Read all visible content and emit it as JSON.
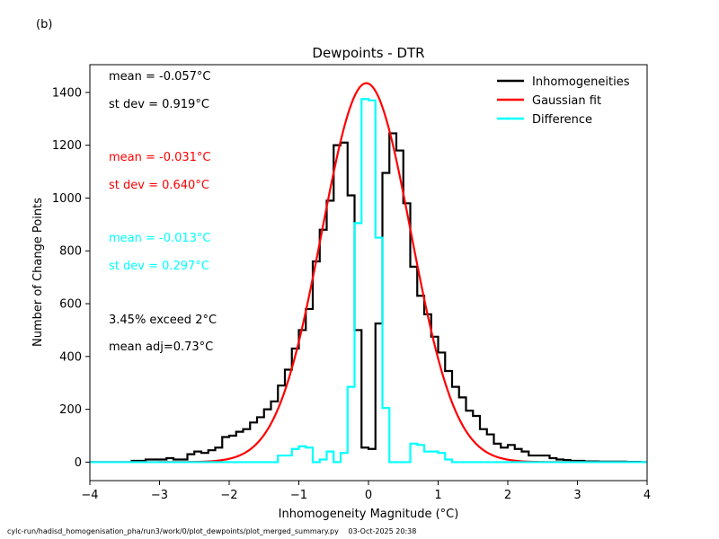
{
  "panel_label": "(b)",
  "footer": {
    "path": "cylc-run/hadisd_homogenisation_pha/run3/work/0/plot_dewpoints/plot_merged_summary.py",
    "timestamp": "03-Oct-2025 20:38"
  },
  "colors": {
    "inhomogeneities": "#000000",
    "gaussian": "#ff0000",
    "difference": "#00ffff",
    "axes": "#000000",
    "background": "#ffffff"
  },
  "chart_data": {
    "type": "line",
    "title": "Dewpoints - DTR",
    "xlabel": "Inhomogeneity Magnitude (°C)",
    "ylabel": "Number of Change Points",
    "xlim": [
      -4,
      4
    ],
    "ylim": [
      -70,
      1505
    ],
    "xticks": [
      -4,
      -3,
      -2,
      -1,
      0,
      1,
      2,
      3,
      4
    ],
    "yticks": [
      0,
      200,
      400,
      600,
      800,
      1000,
      1200,
      1400
    ],
    "grid": false,
    "legend_position": "top-right",
    "stats_text": [
      {
        "text": "mean = -0.057$^\\circ$C",
        "color": "#000000"
      },
      {
        "text": "st dev =  0.919$^\\circ$C",
        "color": "#000000"
      },
      {
        "text": "mean = -0.031$^\\circ$C",
        "color": "#ff0000"
      },
      {
        "text": "st dev =  0.640$^\\circ$C",
        "color": "#ff0000"
      },
      {
        "text": "mean = -0.013$^\\circ$C",
        "color": "#00ffff"
      },
      {
        "text": "st dev =  0.297$^\\circ$C",
        "color": "#00ffff"
      },
      {
        "text": "3.45% exceed 2$^\\circ$C",
        "color": "#000000"
      },
      {
        "text": "mean adj=0.73$^\\circ$C",
        "color": "#000000"
      }
    ],
    "series": [
      {
        "name": "Inhomogeneities",
        "style": "step",
        "x": [
          -4.0,
          -3.4,
          -3.2,
          -2.9,
          -2.8,
          -2.6,
          -2.5,
          -2.4,
          -2.3,
          -2.2,
          -2.1,
          -2.0,
          -1.9,
          -1.8,
          -1.7,
          -1.6,
          -1.5,
          -1.4,
          -1.3,
          -1.2,
          -1.1,
          -1.0,
          -0.9,
          -0.8,
          -0.7,
          -0.6,
          -0.5,
          -0.4,
          -0.3,
          -0.2,
          -0.1,
          0.0,
          0.1,
          0.2,
          0.3,
          0.4,
          0.5,
          0.6,
          0.7,
          0.8,
          0.9,
          1.0,
          1.1,
          1.2,
          1.3,
          1.4,
          1.5,
          1.6,
          1.7,
          1.8,
          1.9,
          2.0,
          2.1,
          2.2,
          2.3,
          2.5,
          2.6,
          2.7,
          2.8,
          2.9,
          3.0,
          3.1,
          3.3,
          3.5,
          3.7,
          3.9,
          4.0
        ],
        "y": [
          0,
          5,
          10,
          15,
          10,
          30,
          40,
          35,
          45,
          55,
          95,
          100,
          115,
          125,
          150,
          170,
          200,
          230,
          290,
          350,
          430,
          500,
          580,
          760,
          880,
          990,
          1200,
          1210,
          1010,
          500,
          55,
          50,
          525,
          1095,
          1245,
          1180,
          980,
          740,
          630,
          560,
          475,
          415,
          345,
          285,
          245,
          195,
          175,
          125,
          105,
          70,
          55,
          65,
          50,
          40,
          25,
          25,
          15,
          10,
          8,
          5,
          5,
          3,
          2,
          2,
          1,
          0,
          0
        ]
      },
      {
        "name": "Gaussian fit",
        "style": "line",
        "amplitude": 1435,
        "mean": -0.031,
        "stdev": 0.64
      },
      {
        "name": "Difference",
        "style": "step",
        "x": [
          -4.0,
          -1.3,
          -1.1,
          -1.0,
          -0.9,
          -0.8,
          -0.7,
          -0.6,
          -0.5,
          -0.4,
          -0.3,
          -0.2,
          -0.1,
          0.0,
          0.1,
          0.2,
          0.3,
          0.4,
          0.5,
          0.6,
          0.7,
          0.8,
          0.9,
          1.0,
          1.1,
          1.2,
          4.0
        ],
        "y": [
          0,
          25,
          50,
          60,
          55,
          0,
          10,
          40,
          0,
          35,
          285,
          905,
          1375,
          1370,
          850,
          205,
          0,
          0,
          0,
          70,
          65,
          40,
          40,
          35,
          10,
          0,
          0
        ]
      }
    ]
  }
}
